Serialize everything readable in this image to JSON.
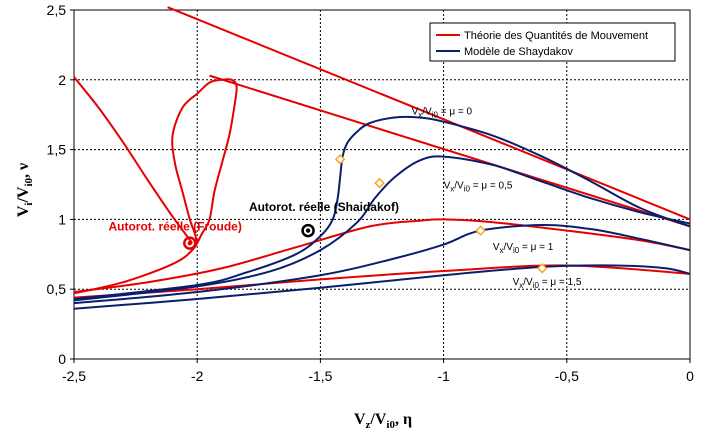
{
  "chart_data": {
    "type": "line",
    "title": "",
    "xlabel": {
      "main": "V",
      "sub1": "z",
      "mid": "/V",
      "sub2": "i0",
      "tail": ", η"
    },
    "ylabel": {
      "main": "V",
      "sub1": "i",
      "mid": "/V",
      "sub2": "i0",
      "tail": ", ν"
    },
    "xlim": [
      -2.5,
      0
    ],
    "ylim": [
      0,
      2.5
    ],
    "xticks": [
      -2.5,
      -2,
      -1.5,
      -1,
      -0.5,
      0
    ],
    "yticks": [
      0,
      0.5,
      1,
      1.5,
      2,
      2.5
    ],
    "xtick_labels": [
      "-2,5",
      "-2",
      "-1,5",
      "-1",
      "-0,5",
      "0"
    ],
    "ytick_labels": [
      "0",
      "0,5",
      "1",
      "1,5",
      "2",
      "2,5"
    ],
    "grid": true,
    "legend": {
      "placement": "top-right",
      "entries": [
        {
          "label": "Théorie des Quantités de Mouvement",
          "color": "#e60000"
        },
        {
          "label": "Modèle de Shaydakov",
          "color": "#0a1e6e"
        }
      ]
    },
    "colors": {
      "momentum": "#e60000",
      "shaydakov": "#0a1e6e",
      "marker": "#f5a623",
      "grid": "#000000"
    },
    "series": [
      {
        "group": "momentum",
        "x": [
          -2.5,
          -2.3,
          -2.1,
          -2.02,
          -1.98,
          -1.95,
          -1.93,
          -1.9,
          -1.87,
          -1.85,
          -1.84,
          -1.86,
          -1.9,
          -1.95,
          -2.0
        ],
        "y": [
          0.47,
          0.55,
          0.68,
          0.78,
          0.9,
          1.0,
          1.2,
          1.4,
          1.6,
          1.8,
          1.95,
          2.0,
          2.0,
          1.98,
          1.9
        ]
      },
      {
        "group": "momentum",
        "x": [
          -2.0,
          -2.06,
          -2.1,
          -2.09,
          -2.06,
          -2.03,
          -2.01,
          -2.0
        ],
        "y": [
          1.9,
          1.8,
          1.6,
          1.4,
          1.2,
          1.0,
          0.9,
          0.83
        ]
      },
      {
        "group": "momentum",
        "x": [
          -2.5,
          -2.4,
          -2.3,
          -2.2,
          -2.1,
          -2.02
        ],
        "y": [
          2.02,
          1.8,
          1.55,
          1.28,
          1.02,
          0.83
        ]
      },
      {
        "group": "momentum",
        "x": [
          -2.5,
          -2.2,
          -1.9,
          -1.6,
          -1.3,
          -1.1,
          -1.0,
          -0.8,
          -0.5,
          -0.2,
          0.0
        ],
        "y": [
          0.48,
          0.55,
          0.65,
          0.8,
          0.95,
          0.99,
          1.0,
          0.98,
          0.92,
          0.85,
          0.78
        ]
      },
      {
        "group": "momentum",
        "x": [
          -2.5,
          -2.0,
          -1.5,
          -1.0,
          -0.5,
          0.0
        ],
        "y": [
          0.44,
          0.5,
          0.57,
          0.63,
          0.67,
          0.61
        ]
      },
      {
        "group": "momentum",
        "x": [
          -2.12,
          0.0
        ],
        "y": [
          2.52,
          1.0
        ]
      },
      {
        "group": "momentum",
        "x": [
          -1.95,
          0.0
        ],
        "y": [
          2.03,
          0.95
        ]
      },
      {
        "group": "shaydakov",
        "name": "Vx/Vi0 = μ = 0",
        "x": [
          -2.5,
          -2.0,
          -1.8,
          -1.6,
          -1.5,
          -1.45,
          -1.43,
          -1.42,
          -1.41,
          -1.39,
          -1.35,
          -1.3,
          -1.2,
          -1.1,
          -1.0,
          -0.8,
          -0.6,
          -0.4,
          -0.2,
          0.0
        ],
        "y": [
          0.43,
          0.53,
          0.62,
          0.75,
          0.88,
          1.0,
          1.15,
          1.3,
          1.45,
          1.55,
          1.63,
          1.69,
          1.73,
          1.73,
          1.7,
          1.6,
          1.45,
          1.27,
          1.08,
          0.95
        ]
      },
      {
        "group": "shaydakov",
        "name": "Vx/Vi0 = μ = 0,5",
        "x": [
          -2.5,
          -2.0,
          -1.7,
          -1.5,
          -1.35,
          -1.28,
          -1.2,
          -1.1,
          -1.0,
          -0.8,
          -0.6,
          -0.4,
          -0.2,
          0.0
        ],
        "y": [
          0.42,
          0.52,
          0.63,
          0.78,
          0.98,
          1.15,
          1.3,
          1.42,
          1.45,
          1.39,
          1.27,
          1.15,
          1.05,
          0.97
        ]
      },
      {
        "group": "shaydakov",
        "name": "Vx/Vi0 = μ = 1",
        "x": [
          -2.5,
          -2.0,
          -1.5,
          -1.2,
          -1.0,
          -0.85,
          -0.6,
          -0.4,
          -0.2,
          0.0
        ],
        "y": [
          0.4,
          0.48,
          0.6,
          0.72,
          0.82,
          0.92,
          0.96,
          0.93,
          0.86,
          0.78
        ]
      },
      {
        "group": "shaydakov",
        "name": "Vx/Vi0 = μ = 1,5",
        "x": [
          -2.5,
          -2.0,
          -1.5,
          -1.0,
          -0.6,
          -0.3,
          -0.1,
          0.0
        ],
        "y": [
          0.36,
          0.43,
          0.51,
          0.6,
          0.66,
          0.67,
          0.65,
          0.61
        ]
      }
    ],
    "markers": [
      {
        "x": -1.42,
        "y": 1.43
      },
      {
        "x": -1.26,
        "y": 1.26
      },
      {
        "x": -0.85,
        "y": 0.92
      },
      {
        "x": -0.6,
        "y": 0.65
      }
    ],
    "annotations": [
      {
        "name": "annotation-mu-0",
        "x": -1.13,
        "y": 1.75,
        "main": "V",
        "sub1": "x",
        "mid": "/V",
        "sub2": "i0",
        "tail": " = μ = 0"
      },
      {
        "name": "annotation-mu-0-5",
        "x": -1.0,
        "y": 1.22,
        "main": "V",
        "sub1": "x",
        "mid": "/V",
        "sub2": "i0",
        "tail": " = μ = 0,5"
      },
      {
        "name": "annotation-mu-1",
        "x": -0.8,
        "y": 0.78,
        "main": "V",
        "sub1": "x",
        "mid": "/V",
        "sub2": "i0",
        "tail": " = μ = 1"
      },
      {
        "name": "annotation-mu-1-5",
        "x": -0.72,
        "y": 0.53,
        "main": "V",
        "sub1": "x",
        "mid": "/V",
        "sub2": "i0",
        "tail": " = μ = 1,5"
      }
    ],
    "callouts": [
      {
        "name": "autorot-froude",
        "label": "Autorot. réelle (Froude)",
        "x": -2.03,
        "y": 0.83,
        "color": "#e60000",
        "label_x": -2.36,
        "label_y": 0.92
      },
      {
        "name": "autorot-shaidakof",
        "label": "Autorot. réelle (Shaidakof)",
        "x": -1.55,
        "y": 0.92,
        "color": "#000000",
        "label_x": -1.79,
        "label_y": 1.06
      }
    ]
  }
}
